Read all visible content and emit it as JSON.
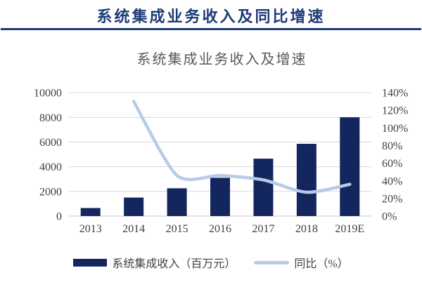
{
  "header": {
    "title": "系统集成业务收入及同比增速"
  },
  "chart": {
    "title": "系统集成业务收入及增速",
    "legend": [
      {
        "label": "系统集成收入（百万元）",
        "marker": "bar-swatch"
      },
      {
        "label": "同比（%）",
        "marker": "line-swatch"
      }
    ]
  },
  "chart_data": {
    "type": "bar",
    "subtype": "bar+line combo, dual axis",
    "title": "系统集成业务收入及增速",
    "categories": [
      "2013",
      "2014",
      "2015",
      "2016",
      "2017",
      "2018",
      "2019E"
    ],
    "series": [
      {
        "name": "系统集成收入（百万元）",
        "type": "bar",
        "axis": "left",
        "values": [
          650,
          1500,
          2250,
          3100,
          4650,
          5850,
          8000
        ],
        "color": "#14265e"
      },
      {
        "name": "同比（%）",
        "type": "line",
        "axis": "right",
        "values": [
          null,
          130,
          46,
          46,
          41,
          27,
          36
        ],
        "color": "#b8cbe6"
      }
    ],
    "left_axis": {
      "min": 0,
      "max": 10000,
      "step": 2000,
      "ticks": [
        0,
        2000,
        4000,
        6000,
        8000,
        10000
      ]
    },
    "right_axis": {
      "min": 0,
      "max": 140,
      "step": 20,
      "unit": "%",
      "ticks": [
        0,
        20,
        40,
        60,
        80,
        100,
        120,
        140
      ]
    },
    "grid": "horizontal",
    "legend_position": "bottom",
    "colors": {
      "bar": "#14265e",
      "line": "#b8cbe6",
      "grid": "#d7d7d7",
      "axis_text": "#3f3f3f",
      "chart_title": "#595959",
      "header_accent": "#1e3c78"
    }
  }
}
